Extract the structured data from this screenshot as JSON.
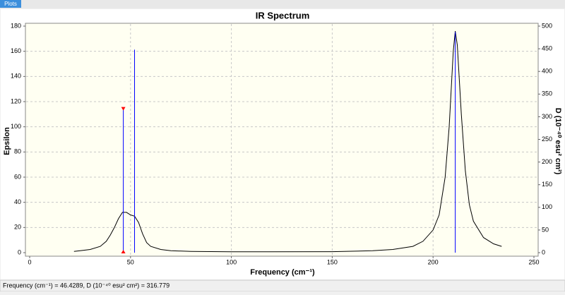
{
  "tab": "Plots",
  "chart_data": {
    "type": "line",
    "title": "IR Spectrum",
    "x_label": "Frequency (cm⁻¹)",
    "y_label": "Epsilon",
    "y2_label": "D (10⁻⁴⁰ esu² cm²)",
    "xlim": [
      0,
      250
    ],
    "xticks": [
      0,
      50,
      100,
      150,
      200,
      250
    ],
    "ylim": [
      0,
      180
    ],
    "yticks": [
      0,
      20,
      40,
      60,
      80,
      100,
      120,
      140,
      160,
      180
    ],
    "y2lim": [
      0,
      500
    ],
    "y2ticks": [
      0,
      50,
      100,
      150,
      200,
      250,
      300,
      350,
      400,
      450,
      500
    ],
    "grid": true,
    "background": "#fffff2",
    "series": [
      {
        "color": "#000000",
        "x": [
          22,
          25,
          30,
          35,
          38,
          40,
          42,
          44,
          46,
          48,
          50,
          52,
          54,
          56,
          58,
          60,
          65,
          70,
          80,
          100,
          150,
          170,
          180,
          190,
          195,
          200,
          203,
          206,
          208,
          210,
          211,
          212,
          214,
          216,
          218,
          220,
          225,
          230,
          234
        ],
        "values": [
          1,
          1.5,
          2.5,
          5,
          9,
          14,
          20,
          27,
          32,
          32,
          30,
          29,
          24,
          15,
          8,
          5,
          2.5,
          1.5,
          1,
          0.7,
          0.8,
          1.5,
          2.5,
          5,
          9,
          18,
          30,
          60,
          100,
          160,
          176,
          165,
          110,
          65,
          38,
          25,
          12,
          7,
          5
        ]
      },
      {
        "color": "#0000ff",
        "axis": "y2",
        "style": "stick",
        "x": [
          46.4289,
          52,
          211
        ],
        "values": [
          316.779,
          448,
          487
        ]
      }
    ],
    "selected_stick": 0,
    "marker_color": "#ff0000"
  },
  "status": "Frequency (cm⁻¹) = 46.4289, D (10⁻⁴⁰ esu² cm²) = 316.779"
}
